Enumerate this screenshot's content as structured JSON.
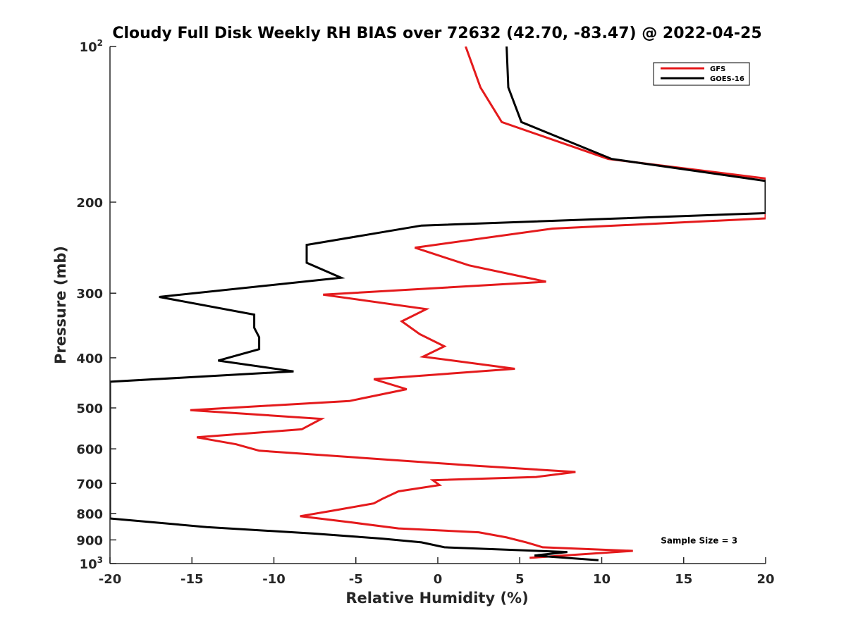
{
  "chart_data": {
    "type": "line",
    "title": "Cloudy Full Disk Weekly RH BIAS over 72632 (42.70, -83.47) @ 2022-04-25",
    "xlabel": "Relative Humidity (%)",
    "ylabel": "Pressure (mb)",
    "xlim": [
      -20,
      20
    ],
    "ylim": [
      100,
      1000
    ],
    "y_scale": "log",
    "y_reversed": true,
    "grid": false,
    "legend_position": "top-right",
    "x_ticks": [
      {
        "value": -20,
        "label": "-20"
      },
      {
        "value": -15,
        "label": "-15"
      },
      {
        "value": -10,
        "label": "-10"
      },
      {
        "value": -5,
        "label": "-5"
      },
      {
        "value": 0,
        "label": "0"
      },
      {
        "value": 5,
        "label": "5"
      },
      {
        "value": 10,
        "label": "10"
      },
      {
        "value": 15,
        "label": "15"
      },
      {
        "value": 20,
        "label": "20"
      }
    ],
    "y_ticks": [
      {
        "value": 100,
        "base": "10",
        "exp": "2"
      },
      {
        "value": 200,
        "label": "200"
      },
      {
        "value": 300,
        "label": "300"
      },
      {
        "value": 400,
        "label": "400"
      },
      {
        "value": 500,
        "label": "500"
      },
      {
        "value": 600,
        "label": "600"
      },
      {
        "value": 700,
        "label": "700"
      },
      {
        "value": 800,
        "label": "800"
      },
      {
        "value": 900,
        "label": "900"
      },
      {
        "value": 1000,
        "base": "10",
        "exp": "3"
      }
    ],
    "series": [
      {
        "name": "GFS",
        "color": "#e41a1c",
        "points": [
          [
            1.7,
            100
          ],
          [
            2.6,
            120
          ],
          [
            3.9,
            140
          ],
          [
            10.4,
            165
          ],
          [
            20,
            180
          ],
          [
            20,
            215
          ],
          [
            7.0,
            225
          ],
          [
            -1.4,
            245
          ],
          [
            1.9,
            265
          ],
          [
            6.6,
            285
          ],
          [
            -7.0,
            302
          ],
          [
            -0.7,
            322
          ],
          [
            -2.2,
            340
          ],
          [
            -1.1,
            360
          ],
          [
            0.4,
            380
          ],
          [
            -0.9,
            398
          ],
          [
            4.7,
            420
          ],
          [
            -3.9,
            440
          ],
          [
            -1.9,
            460
          ],
          [
            -5.4,
            485
          ],
          [
            -15.1,
            505
          ],
          [
            -7.1,
            525
          ],
          [
            -8.3,
            550
          ],
          [
            -14.7,
            570
          ],
          [
            -12.3,
            588
          ],
          [
            -10.9,
            605
          ],
          [
            1.7,
            645
          ],
          [
            8.4,
            665
          ],
          [
            6.0,
            680
          ],
          [
            -0.3,
            690
          ],
          [
            0.1,
            705
          ],
          [
            -2.4,
            725
          ],
          [
            -3.4,
            750
          ],
          [
            -3.9,
            765
          ],
          [
            -6.4,
            790
          ],
          [
            -8.4,
            810
          ],
          [
            -5.2,
            833
          ],
          [
            -2.4,
            855
          ],
          [
            2.5,
            870
          ],
          [
            4.2,
            890
          ],
          [
            5.4,
            910
          ],
          [
            6.4,
            930
          ],
          [
            11.9,
            945
          ],
          [
            5.6,
            975
          ]
        ]
      },
      {
        "name": "GOES-16",
        "color": "#000000",
        "points": [
          [
            4.2,
            100
          ],
          [
            4.3,
            120
          ],
          [
            5.1,
            140
          ],
          [
            10.6,
            165
          ],
          [
            20,
            182
          ],
          [
            20,
            210
          ],
          [
            -1.0,
            222
          ],
          [
            -8.0,
            242
          ],
          [
            -8.0,
            262
          ],
          [
            -5.9,
            280
          ],
          [
            -17.0,
            305
          ],
          [
            -11.2,
            330
          ],
          [
            -11.2,
            350
          ],
          [
            -10.9,
            365
          ],
          [
            -10.9,
            385
          ],
          [
            -13.4,
            405
          ],
          [
            -8.8,
            425
          ],
          [
            -20,
            445
          ],
          [
            -20,
            818
          ],
          [
            -14.1,
            850
          ],
          [
            -7.6,
            875
          ],
          [
            -3.4,
            895
          ],
          [
            -1.0,
            910
          ],
          [
            0.4,
            930
          ],
          [
            7.9,
            950
          ],
          [
            5.9,
            965
          ],
          [
            9.8,
            985
          ]
        ]
      }
    ],
    "annotations": [
      {
        "text": "Sample Size = 3",
        "x": 13.6,
        "y": 900
      }
    ]
  }
}
